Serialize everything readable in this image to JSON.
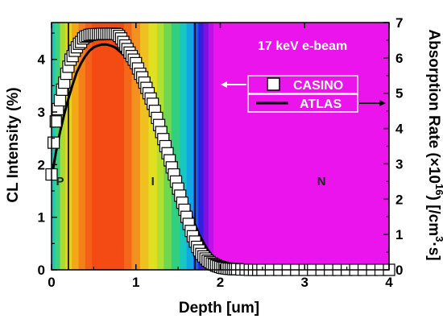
{
  "chart_data": {
    "type": "scatter",
    "xlabel": "Depth [um]",
    "ylabel_left": "CL Intensity (%)",
    "ylabel_right_parts": [
      "Absorption Rate (×10",
      "16",
      ") [/cm",
      "3",
      "·s]"
    ],
    "xlim": [
      0,
      4
    ],
    "ylim_left": [
      0,
      4.7
    ],
    "ylim_right": [
      0,
      7
    ],
    "x_ticks": [
      "0",
      "1",
      "2",
      "3",
      "4"
    ],
    "x_tick_values": [
      0,
      1,
      2,
      3,
      4
    ],
    "y_left_ticks": [
      "0",
      "1",
      "2",
      "3",
      "4"
    ],
    "y_left_tick_values": [
      0,
      1,
      2,
      3,
      4
    ],
    "y_right_ticks": [
      "0",
      "1",
      "2",
      "3",
      "4",
      "5",
      "6",
      "7"
    ],
    "y_right_tick_values": [
      0,
      1,
      2,
      3,
      4,
      5,
      6,
      7
    ],
    "annotation": "17 keV e-beam",
    "regions": [
      {
        "label": "P",
        "x": 0.1
      },
      {
        "label": "I",
        "x": 1.2
      },
      {
        "label": "N",
        "x": 3.2
      }
    ],
    "boundaries": [
      0.2,
      1.7
    ],
    "series": [
      {
        "name": "CASINO",
        "axis": "right",
        "style": "open-square",
        "x": [
          0.0,
          0.025,
          0.05,
          0.075,
          0.1,
          0.125,
          0.15,
          0.175,
          0.2,
          0.225,
          0.25,
          0.275,
          0.3,
          0.325,
          0.35,
          0.375,
          0.4,
          0.425,
          0.45,
          0.475,
          0.5,
          0.525,
          0.55,
          0.575,
          0.6,
          0.625,
          0.65,
          0.675,
          0.7,
          0.725,
          0.75,
          0.775,
          0.8,
          0.825,
          0.85,
          0.875,
          0.9,
          0.925,
          0.95,
          0.975,
          1.0,
          1.025,
          1.05,
          1.075,
          1.1,
          1.125,
          1.15,
          1.175,
          1.2,
          1.225,
          1.25,
          1.275,
          1.3,
          1.325,
          1.35,
          1.375,
          1.4,
          1.425,
          1.45,
          1.475,
          1.5,
          1.525,
          1.55,
          1.575,
          1.6,
          1.625,
          1.65,
          1.675,
          1.7,
          1.725,
          1.75,
          1.775,
          1.8,
          1.825,
          1.85,
          1.875,
          1.9,
          1.925,
          1.95,
          1.975,
          2.0,
          2.025,
          2.05,
          2.075,
          2.1,
          2.125,
          2.15,
          2.175,
          2.2,
          2.25,
          2.3,
          2.35,
          2.4,
          2.45,
          2.5,
          2.6,
          2.7,
          2.8,
          2.9,
          3.0,
          3.1,
          3.2,
          3.3,
          3.4,
          3.5,
          3.6,
          3.7,
          3.8,
          3.9,
          4.0
        ],
        "y": [
          2.7,
          3.6,
          4.2,
          4.55,
          4.8,
          5.1,
          5.3,
          5.55,
          5.75,
          5.95,
          6.05,
          6.2,
          6.3,
          6.4,
          6.45,
          6.55,
          6.6,
          6.62,
          6.65,
          6.66,
          6.67,
          6.67,
          6.67,
          6.67,
          6.68,
          6.68,
          6.68,
          6.68,
          6.68,
          6.68,
          6.68,
          6.67,
          6.62,
          6.55,
          6.45,
          6.35,
          6.25,
          6.15,
          6.05,
          5.95,
          5.85,
          5.7,
          5.55,
          5.45,
          5.3,
          5.15,
          5.0,
          4.85,
          4.7,
          4.5,
          4.3,
          4.1,
          3.9,
          3.7,
          3.5,
          3.3,
          3.1,
          2.9,
          2.7,
          2.5,
          2.3,
          2.1,
          1.9,
          1.7,
          1.5,
          1.3,
          1.1,
          0.95,
          0.8,
          0.65,
          0.55,
          0.45,
          0.38,
          0.32,
          0.26,
          0.22,
          0.18,
          0.15,
          0.12,
          0.1,
          0.08,
          0.06,
          0.05,
          0.04,
          0.03,
          0.03,
          0.02,
          0.02,
          0.02,
          0.01,
          0.01,
          0.0,
          0.0,
          0.0,
          0.0,
          0.0,
          0.0,
          0.0,
          0.0,
          0.0,
          0.0,
          0.0,
          0.0,
          0.0,
          0.0,
          0.0,
          0.0,
          0.0,
          0.0,
          0.0
        ]
      },
      {
        "name": "ATLAS",
        "axis": "right",
        "style": "line",
        "color": "#000000",
        "x": [
          0.0,
          0.05,
          0.1,
          0.15,
          0.2,
          0.25,
          0.3,
          0.35,
          0.4,
          0.45,
          0.5,
          0.55,
          0.6,
          0.65,
          0.7,
          0.75,
          0.8,
          0.85,
          0.9,
          0.95,
          1.0,
          1.05,
          1.1,
          1.15,
          1.2,
          1.25,
          1.3,
          1.35,
          1.4,
          1.45,
          1.5,
          1.55,
          1.6,
          1.65,
          1.7,
          1.75,
          1.8,
          1.85,
          1.9,
          1.95,
          2.0,
          2.05,
          2.1,
          2.15,
          2.2,
          2.3,
          2.4,
          2.5,
          2.75,
          3.0,
          3.5,
          4.0
        ],
        "y": [
          2.6,
          3.3,
          3.9,
          4.4,
          4.85,
          5.25,
          5.6,
          5.85,
          6.05,
          6.2,
          6.3,
          6.35,
          6.38,
          6.38,
          6.35,
          6.3,
          6.2,
          6.1,
          5.95,
          5.8,
          5.6,
          5.4,
          5.15,
          4.9,
          4.6,
          4.3,
          4.0,
          3.65,
          3.3,
          2.95,
          2.6,
          2.25,
          1.9,
          1.58,
          1.28,
          1.0,
          0.77,
          0.57,
          0.41,
          0.29,
          0.2,
          0.13,
          0.08,
          0.05,
          0.03,
          0.01,
          0.0,
          0.0,
          0.0,
          0.0,
          0.0,
          0.0
        ]
      }
    ],
    "legend": [
      "CASINO",
      "ATLAS"
    ],
    "background_bands": [
      {
        "x0": 0.0,
        "x1": 0.04,
        "color": "#18c8c8"
      },
      {
        "x0": 0.04,
        "x1": 0.1,
        "color": "#40d280"
      },
      {
        "x0": 0.1,
        "x1": 0.16,
        "color": "#a8dc30"
      },
      {
        "x0": 0.16,
        "x1": 0.24,
        "color": "#e8d020"
      },
      {
        "x0": 0.24,
        "x1": 0.32,
        "color": "#f4a818"
      },
      {
        "x0": 0.32,
        "x1": 0.4,
        "color": "#f48018"
      },
      {
        "x0": 0.4,
        "x1": 0.48,
        "color": "#f46018"
      },
      {
        "x0": 0.48,
        "x1": 0.86,
        "color": "#f44a14"
      },
      {
        "x0": 0.86,
        "x1": 0.95,
        "color": "#f46818"
      },
      {
        "x0": 0.95,
        "x1": 1.05,
        "color": "#f49020"
      },
      {
        "x0": 1.05,
        "x1": 1.15,
        "color": "#f0c020"
      },
      {
        "x0": 1.15,
        "x1": 1.25,
        "color": "#e0e020"
      },
      {
        "x0": 1.25,
        "x1": 1.33,
        "color": "#b0e030"
      },
      {
        "x0": 1.33,
        "x1": 1.42,
        "color": "#70d850"
      },
      {
        "x0": 1.42,
        "x1": 1.52,
        "color": "#30d080"
      },
      {
        "x0": 1.52,
        "x1": 1.6,
        "color": "#18c8c0"
      },
      {
        "x0": 1.6,
        "x1": 1.68,
        "color": "#10a8e0"
      },
      {
        "x0": 1.68,
        "x1": 1.74,
        "color": "#1060e8"
      },
      {
        "x0": 1.74,
        "x1": 1.8,
        "color": "#3020e0"
      },
      {
        "x0": 1.8,
        "x1": 1.86,
        "color": "#8010e0"
      },
      {
        "x0": 1.86,
        "x1": 1.92,
        "color": "#c010e8"
      },
      {
        "x0": 1.92,
        "x1": 4.0,
        "color": "#ec14ec"
      }
    ]
  }
}
